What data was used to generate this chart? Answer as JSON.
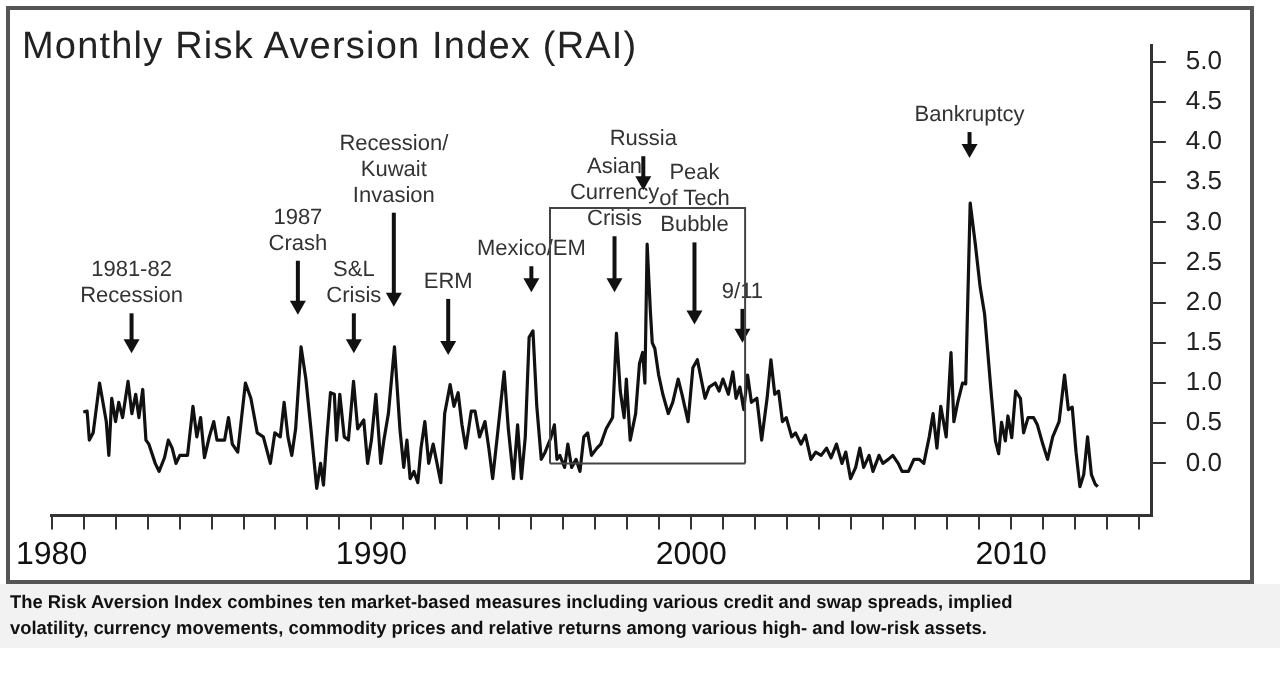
{
  "chart_data": {
    "type": "line",
    "title": "Monthly Risk Aversion Index (RAI)",
    "x": [
      1980.99,
      1981.11,
      1981.18,
      1981.3,
      1981.5,
      1981.71,
      1981.79,
      1981.88,
      1982.0,
      1982.1,
      1982.22,
      1982.39,
      1982.51,
      1982.63,
      1982.73,
      1982.85,
      1982.95,
      1983.04,
      1983.24,
      1983.36,
      1983.53,
      1983.65,
      1983.77,
      1983.89,
      1984.01,
      1984.25,
      1984.42,
      1984.54,
      1984.66,
      1984.78,
      1984.93,
      1985.07,
      1985.17,
      1985.41,
      1985.53,
      1985.65,
      1985.82,
      1986.06,
      1986.23,
      1986.43,
      1986.62,
      1986.84,
      1986.98,
      1987.15,
      1987.27,
      1987.39,
      1987.51,
      1987.63,
      1987.8,
      1987.95,
      1988.12,
      1988.29,
      1988.41,
      1988.5,
      1988.6,
      1988.72,
      1988.84,
      1988.91,
      1989.01,
      1989.15,
      1989.28,
      1989.44,
      1989.57,
      1989.76,
      1989.88,
      1990.0,
      1990.14,
      1990.29,
      1990.39,
      1990.53,
      1990.72,
      1990.89,
      1991.01,
      1991.11,
      1991.21,
      1991.33,
      1991.45,
      1991.55,
      1991.67,
      1991.79,
      1991.93,
      1992.05,
      1992.17,
      1992.29,
      1992.46,
      1992.58,
      1992.71,
      1992.83,
      1992.95,
      1993.12,
      1993.24,
      1993.38,
      1993.55,
      1993.67,
      1993.79,
      1993.96,
      1994.15,
      1994.28,
      1994.44,
      1994.57,
      1994.69,
      1994.81,
      1994.93,
      1995.05,
      1995.17,
      1995.31,
      1995.43,
      1995.6,
      1995.72,
      1995.8,
      1995.89,
      1996.04,
      1996.14,
      1996.26,
      1996.4,
      1996.52,
      1996.64,
      1996.76,
      1996.88,
      1997.05,
      1997.17,
      1997.34,
      1997.54,
      1997.66,
      1997.78,
      1997.9,
      1997.97,
      1998.09,
      1998.26,
      1998.38,
      1998.48,
      1998.55,
      1998.62,
      1998.72,
      1998.78,
      1998.86,
      1998.98,
      1999.11,
      1999.28,
      1999.42,
      1999.59,
      1999.71,
      1999.9,
      2000.05,
      2000.19,
      2000.31,
      2000.43,
      2000.56,
      2000.75,
      2000.87,
      2000.99,
      2001.16,
      2001.3,
      2001.4,
      2001.52,
      2001.64,
      2001.76,
      2001.88,
      2002.05,
      2002.2,
      2002.37,
      2002.49,
      2002.61,
      2002.73,
      2002.85,
      2002.97,
      2003.14,
      2003.26,
      2003.43,
      2003.57,
      2003.74,
      2003.89,
      2004.06,
      2004.23,
      2004.37,
      2004.54,
      2004.71,
      2004.83,
      2004.98,
      2005.14,
      2005.27,
      2005.39,
      2005.56,
      2005.68,
      2005.87,
      2005.99,
      2006.16,
      2006.3,
      2006.47,
      2006.59,
      2006.79,
      2006.96,
      2007.13,
      2007.27,
      2007.44,
      2007.56,
      2007.68,
      2007.8,
      2007.97,
      2008.12,
      2008.21,
      2008.33,
      2008.48,
      2008.58,
      2008.72,
      2008.88,
      2009.03,
      2009.17,
      2009.37,
      2009.51,
      2009.61,
      2009.7,
      2009.82,
      2009.9,
      2010.02,
      2010.14,
      2010.29,
      2010.39,
      2010.53,
      2010.7,
      2010.82,
      2010.99,
      2011.14,
      2011.3,
      2011.5,
      2011.67,
      2011.79,
      2011.91,
      2012.03,
      2012.15,
      2012.27,
      2012.39,
      2012.51,
      2012.63,
      2012.71
    ],
    "values": [
      0.64,
      0.65,
      0.29,
      0.38,
      1.0,
      0.52,
      0.1,
      0.81,
      0.52,
      0.76,
      0.57,
      1.02,
      0.62,
      0.86,
      0.57,
      0.92,
      0.29,
      0.24,
      0.0,
      -0.1,
      0.07,
      0.29,
      0.19,
      0.0,
      0.1,
      0.1,
      0.71,
      0.33,
      0.57,
      0.07,
      0.33,
      0.52,
      0.29,
      0.29,
      0.57,
      0.24,
      0.14,
      1.0,
      0.81,
      0.38,
      0.33,
      0.0,
      0.38,
      0.33,
      0.76,
      0.33,
      0.1,
      0.43,
      1.45,
      1.05,
      0.38,
      -0.31,
      0.0,
      -0.27,
      0.29,
      0.88,
      0.86,
      0.29,
      0.86,
      0.33,
      0.29,
      1.02,
      0.43,
      0.54,
      0.0,
      0.29,
      0.86,
      0.0,
      0.29,
      0.62,
      1.45,
      0.43,
      -0.05,
      0.29,
      -0.19,
      -0.1,
      -0.24,
      0.19,
      0.52,
      0.0,
      0.24,
      0.0,
      -0.24,
      0.62,
      0.98,
      0.71,
      0.88,
      0.48,
      0.19,
      0.65,
      0.65,
      0.33,
      0.52,
      0.19,
      -0.19,
      0.43,
      1.14,
      0.43,
      -0.19,
      0.48,
      -0.19,
      0.33,
      1.57,
      1.65,
      0.71,
      0.05,
      0.14,
      0.31,
      0.48,
      0.05,
      0.1,
      -0.05,
      0.24,
      -0.05,
      0.05,
      -0.1,
      0.33,
      0.38,
      0.1,
      0.19,
      0.24,
      0.43,
      0.57,
      1.62,
      0.9,
      0.57,
      1.05,
      0.29,
      0.62,
      1.24,
      1.38,
      1.0,
      2.73,
      1.9,
      1.5,
      1.43,
      1.1,
      0.86,
      0.62,
      0.76,
      1.05,
      0.86,
      0.52,
      1.19,
      1.29,
      1.05,
      0.81,
      0.95,
      1.0,
      0.9,
      1.05,
      0.86,
      1.14,
      0.81,
      0.95,
      0.67,
      1.1,
      0.76,
      0.81,
      0.29,
      0.81,
      1.29,
      0.86,
      0.9,
      0.52,
      0.57,
      0.33,
      0.38,
      0.24,
      0.35,
      0.05,
      0.14,
      0.1,
      0.19,
      0.07,
      0.24,
      0.0,
      0.14,
      -0.19,
      -0.05,
      0.19,
      -0.05,
      0.1,
      -0.1,
      0.1,
      0.0,
      0.05,
      0.1,
      0.0,
      -0.1,
      -0.1,
      0.05,
      0.05,
      0.0,
      0.33,
      0.62,
      0.19,
      0.71,
      0.33,
      1.38,
      0.52,
      0.76,
      1.0,
      0.99,
      3.24,
      2.73,
      2.2,
      1.86,
      0.91,
      0.28,
      0.12,
      0.51,
      0.28,
      0.59,
      0.32,
      0.9,
      0.81,
      0.38,
      0.57,
      0.57,
      0.48,
      0.24,
      0.05,
      0.33,
      0.52,
      1.1,
      0.67,
      0.7,
      0.14,
      -0.29,
      -0.14,
      0.33,
      -0.14,
      -0.26,
      -0.29
    ],
    "color": "#111111",
    "xlim": [
      1980,
      2014.4
    ],
    "xticks": [
      {
        "value": 1980,
        "label": "1980"
      },
      {
        "value": 1981,
        "label": null
      },
      {
        "value": 1982,
        "label": null
      },
      {
        "value": 1983,
        "label": null
      },
      {
        "value": 1984,
        "label": null
      },
      {
        "value": 1985,
        "label": null
      },
      {
        "value": 1986,
        "label": null
      },
      {
        "value": 1987,
        "label": null
      },
      {
        "value": 1988,
        "label": null
      },
      {
        "value": 1989,
        "label": null
      },
      {
        "value": 1990,
        "label": "1990"
      },
      {
        "value": 1991,
        "label": null
      },
      {
        "value": 1992,
        "label": null
      },
      {
        "value": 1993,
        "label": null
      },
      {
        "value": 1994,
        "label": null
      },
      {
        "value": 1995,
        "label": null
      },
      {
        "value": 1996,
        "label": null
      },
      {
        "value": 1997,
        "label": null
      },
      {
        "value": 1998,
        "label": null
      },
      {
        "value": 1999,
        "label": null
      },
      {
        "value": 2000,
        "label": "2000"
      },
      {
        "value": 2001,
        "label": null
      },
      {
        "value": 2002,
        "label": null
      },
      {
        "value": 2003,
        "label": null
      },
      {
        "value": 2004,
        "label": null
      },
      {
        "value": 2005,
        "label": null
      },
      {
        "value": 2006,
        "label": null
      },
      {
        "value": 2007,
        "label": null
      },
      {
        "value": 2008,
        "label": null
      },
      {
        "value": 2009,
        "label": null
      },
      {
        "value": 2010,
        "label": "2010"
      },
      {
        "value": 2011,
        "label": null
      },
      {
        "value": 2012,
        "label": null
      },
      {
        "value": 2013,
        "label": null
      },
      {
        "value": 2014,
        "label": null
      }
    ],
    "ylim": [
      -0.65,
      5.2
    ],
    "yticks": [
      {
        "value": 0,
        "label": "0.0"
      },
      {
        "value": 0.5,
        "label": "0.5"
      },
      {
        "value": 1,
        "label": "1.0"
      },
      {
        "value": 1.5,
        "label": "1.5"
      },
      {
        "value": 2,
        "label": "2.0"
      },
      {
        "value": 2.5,
        "label": "2.5"
      },
      {
        "value": 3,
        "label": "3.0"
      },
      {
        "value": 3.5,
        "label": "3.5"
      },
      {
        "value": 4,
        "label": "4.0"
      },
      {
        "value": 4.5,
        "label": "4.5"
      },
      {
        "value": 5,
        "label": "5.0"
      }
    ],
    "grid": false,
    "legend": false,
    "marker": "none",
    "line_style": "solid",
    "annotations": [
      "1981-82\nRecession",
      "1987\nCrash",
      "S&L\nCrisis",
      "Recession/\nKuwait\nInvasion",
      "ERM",
      "Mexico/EM",
      "Asian\nCurrency\nCrisis",
      "Russia",
      "Peak\nof Tech\nBubble",
      "9/11",
      "Bankruptcy",
      "The Risk Aversion Index combines ten market-based measures including various credit and swap spreads, implied volatility, currency movements, commodity prices and relative returns among various high- and low-risk assets."
    ]
  }
}
